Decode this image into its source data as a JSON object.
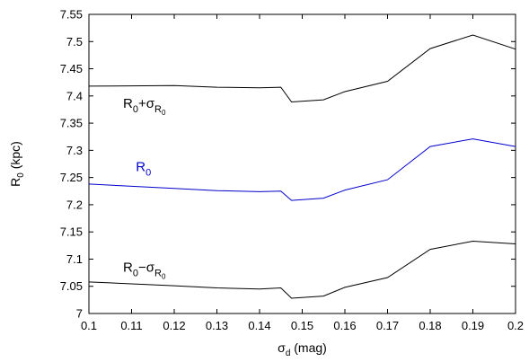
{
  "chart_data": {
    "type": "line",
    "xlabel": {
      "main": "σ",
      "sub": "d",
      "unit": " (mag)"
    },
    "ylabel": {
      "main": "R",
      "sub": "0",
      "unit": " (kpc)"
    },
    "xlim": [
      0.1,
      0.2
    ],
    "ylim": [
      7.0,
      7.55
    ],
    "xticks": [
      0.1,
      0.11,
      0.12,
      0.13,
      0.14,
      0.15,
      0.16,
      0.17,
      0.18,
      0.19,
      0.2
    ],
    "xtick_labels": [
      "0.1",
      "0.11",
      "0.12",
      "0.13",
      "0.14",
      "0.15",
      "0.16",
      "0.17",
      "0.18",
      "0.19",
      "0.2"
    ],
    "yticks": [
      7.0,
      7.05,
      7.1,
      7.15,
      7.2,
      7.25,
      7.3,
      7.35,
      7.4,
      7.45,
      7.5,
      7.55
    ],
    "ytick_labels": [
      "7",
      "7.05",
      "7.1",
      "7.15",
      "7.2",
      "7.25",
      "7.3",
      "7.35",
      "7.4",
      "7.45",
      "7.5",
      "7.55"
    ],
    "grid": false,
    "series": [
      {
        "key": "upper",
        "label": {
          "main": "R",
          "sub": "0",
          "op": "+σ",
          "subsub_base": "R",
          "subsub": "0"
        },
        "label_anchor": [
          0.108,
          7.378
        ],
        "color": "#000000",
        "x": [
          0.1,
          0.12,
          0.13,
          0.14,
          0.145,
          0.1475,
          0.155,
          0.16,
          0.17,
          0.18,
          0.19,
          0.2
        ],
        "y": [
          7.418,
          7.419,
          7.416,
          7.415,
          7.416,
          7.389,
          7.393,
          7.408,
          7.427,
          7.487,
          7.512,
          7.486
        ]
      },
      {
        "key": "center",
        "label": {
          "main": "R",
          "sub": "0"
        },
        "label_anchor": [
          0.111,
          7.262
        ],
        "color": "#0000cc",
        "x": [
          0.1,
          0.12,
          0.13,
          0.14,
          0.145,
          0.1475,
          0.155,
          0.16,
          0.17,
          0.18,
          0.19,
          0.2
        ],
        "y": [
          7.238,
          7.23,
          7.226,
          7.224,
          7.225,
          7.208,
          7.212,
          7.227,
          7.246,
          7.307,
          7.321,
          7.307
        ]
      },
      {
        "key": "lower",
        "label": {
          "main": "R",
          "sub": "0",
          "op": "−σ",
          "subsub_base": "R",
          "subsub": "0"
        },
        "label_anchor": [
          0.108,
          7.077
        ],
        "color": "#000000",
        "x": [
          0.1,
          0.12,
          0.13,
          0.14,
          0.145,
          0.1475,
          0.155,
          0.16,
          0.17,
          0.18,
          0.19,
          0.2
        ],
        "y": [
          7.058,
          7.051,
          7.047,
          7.045,
          7.047,
          7.028,
          7.032,
          7.048,
          7.066,
          7.118,
          7.133,
          7.128
        ]
      }
    ]
  }
}
